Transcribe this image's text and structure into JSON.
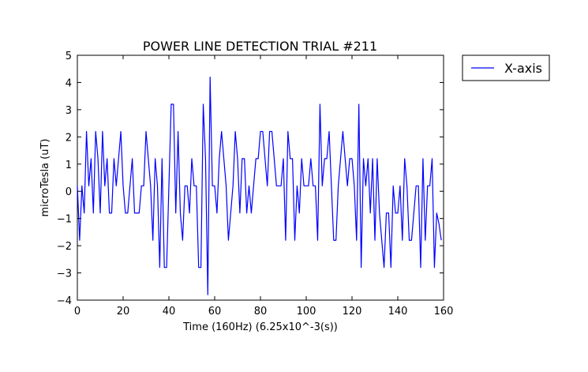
{
  "chart_data": {
    "type": "line",
    "title": "POWER LINE DETECTION TRIAL #211",
    "xlabel": "Time (160Hz) (6.25x10^-3(s))",
    "ylabel": "microTesla (uT)",
    "xlim": [
      0,
      160
    ],
    "ylim": [
      -4,
      5
    ],
    "xticks": [
      0,
      20,
      40,
      60,
      80,
      100,
      120,
      140,
      160
    ],
    "yticks": [
      -4,
      -3,
      -2,
      -1,
      0,
      1,
      2,
      3,
      4,
      5
    ],
    "grid": false,
    "legend_position": "outside-top-right",
    "series": [
      {
        "name": "X-axis",
        "color": "#0000ff",
        "x": [
          0,
          1,
          2,
          3,
          4,
          5,
          6,
          7,
          8,
          9,
          10,
          11,
          12,
          13,
          14,
          15,
          16,
          17,
          18,
          19,
          20,
          21,
          22,
          23,
          24,
          25,
          26,
          27,
          28,
          29,
          30,
          31,
          32,
          33,
          34,
          35,
          36,
          37,
          38,
          39,
          40,
          41,
          42,
          43,
          44,
          45,
          46,
          47,
          48,
          49,
          50,
          51,
          52,
          53,
          54,
          55,
          56,
          57,
          58,
          59,
          60,
          61,
          62,
          63,
          64,
          65,
          66,
          67,
          68,
          69,
          70,
          71,
          72,
          73,
          74,
          75,
          76,
          77,
          78,
          79,
          80,
          81,
          82,
          83,
          84,
          85,
          86,
          87,
          88,
          89,
          90,
          91,
          92,
          93,
          94,
          95,
          96,
          97,
          98,
          99,
          100,
          101,
          102,
          103,
          104,
          105,
          106,
          107,
          108,
          109,
          110,
          111,
          112,
          113,
          114,
          115,
          116,
          117,
          118,
          119,
          120,
          121,
          122,
          123,
          124,
          125,
          126,
          127,
          128,
          129,
          130,
          131,
          132,
          133,
          134,
          135,
          136,
          137,
          138,
          139,
          140,
          141,
          142,
          143,
          144,
          145,
          146,
          147,
          148,
          149,
          150,
          151,
          152,
          153,
          154,
          155,
          156,
          157,
          158,
          159
        ],
        "y": [
          0.2,
          -1.8,
          0.2,
          -0.8,
          2.2,
          0.2,
          1.2,
          -0.8,
          2.2,
          1.2,
          -0.8,
          2.2,
          0.2,
          1.2,
          -0.8,
          -0.8,
          1.2,
          0.2,
          1.2,
          2.2,
          0.2,
          -0.8,
          -0.8,
          0.2,
          1.2,
          -0.8,
          -0.8,
          -0.8,
          0.2,
          0.2,
          2.2,
          1.2,
          0.2,
          -1.8,
          1.2,
          0.2,
          -2.8,
          1.2,
          -2.8,
          -2.8,
          0.2,
          3.2,
          3.2,
          -0.8,
          2.2,
          -0.8,
          -1.8,
          0.2,
          0.2,
          -0.8,
          1.2,
          0.2,
          0.2,
          -2.8,
          -2.8,
          3.2,
          1.2,
          -3.8,
          4.2,
          0.2,
          0.2,
          -0.8,
          1.2,
          2.2,
          1.2,
          0.2,
          -1.8,
          -0.8,
          0.2,
          2.2,
          1.2,
          -0.8,
          1.2,
          1.2,
          -0.8,
          0.2,
          -0.8,
          0.2,
          1.2,
          1.2,
          2.2,
          2.2,
          1.2,
          0.2,
          2.2,
          2.2,
          1.2,
          0.2,
          0.2,
          0.2,
          1.2,
          -1.8,
          2.2,
          1.2,
          1.2,
          -1.8,
          0.2,
          -0.8,
          1.2,
          0.2,
          0.2,
          0.2,
          1.2,
          0.2,
          0.2,
          -1.8,
          3.2,
          0.2,
          1.2,
          1.2,
          2.2,
          0.2,
          -1.8,
          -1.8,
          0.2,
          1.2,
          2.2,
          1.2,
          0.2,
          1.2,
          1.2,
          0.2,
          -1.8,
          3.2,
          -2.8,
          1.2,
          0.2,
          1.2,
          -0.8,
          1.2,
          -1.8,
          1.2,
          -0.8,
          -1.8,
          -2.8,
          -0.8,
          -0.8,
          -2.8,
          0.2,
          -0.8,
          -0.8,
          0.2,
          -1.8,
          1.2,
          0.2,
          -1.8,
          -1.8,
          -0.8,
          0.2,
          0.2,
          -2.8,
          1.2,
          -1.8,
          0.2,
          0.2,
          1.2,
          -2.8,
          -0.8,
          -1.2,
          -1.8
        ]
      }
    ]
  }
}
